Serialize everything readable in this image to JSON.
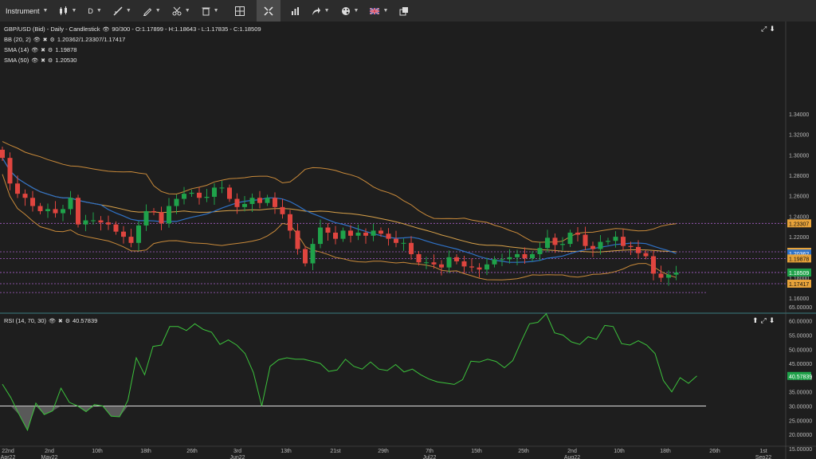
{
  "toolbar": {
    "instrument_label": "Instrument",
    "interval_label": "D",
    "items": [
      "candles-icon",
      "draw-line-icon",
      "pen-icon",
      "scissors-icon",
      "trash-icon",
      "crosshair-icon",
      "fit-icon",
      "bar-chart-icon",
      "share-icon",
      "palette-icon",
      "flag-uk-icon",
      "popout-icon"
    ]
  },
  "main_chart": {
    "title": "GBP/USD (Bid) - Daily - Candlestick",
    "ohlc": "90/300 - O:1.17899 - H:1.18643 - L:1.17835 - C:1.18509",
    "indicators": [
      {
        "label": "BB (20, 2)",
        "value": "1.20362/1.23307/1.17417"
      },
      {
        "label": "SMA (14)",
        "value": "1.19878"
      },
      {
        "label": "SMA (50)",
        "value": "1.20530"
      }
    ],
    "y_ticks": [
      "1.34000",
      "1.32000",
      "1.30000",
      "1.28000",
      "1.26000",
      "1.24000",
      "1.22000",
      "1.20000",
      "1.18000",
      "1.16000"
    ],
    "price_badges": [
      {
        "text": "1.23307",
        "value": 1.23307,
        "bg": "#e8a33a",
        "fg": "#111"
      },
      {
        "text": "1.20530",
        "value": 1.2053,
        "bg": "#e8a33a",
        "fg": "#111"
      },
      {
        "text": "1.20362",
        "value": 1.20362,
        "bg": "#2f72c7",
        "fg": "#fff"
      },
      {
        "text": "1.19878",
        "value": 1.19878,
        "bg": "#e8a33a",
        "fg": "#111"
      },
      {
        "text": "1.18509",
        "value": 1.18509,
        "bg": "#1fa24a",
        "fg": "#fff"
      },
      {
        "text": "1.17417",
        "value": 1.17417,
        "bg": "#e8a33a",
        "fg": "#111"
      }
    ]
  },
  "rsi_panel": {
    "title": "RSI (14, 70, 30)",
    "value": "40.57839",
    "badge": "40.57839",
    "y_ticks": [
      "65.00000",
      "60.00000",
      "55.00000",
      "50.00000",
      "45.00000",
      "40.00000",
      "35.00000",
      "30.00000",
      "25.00000",
      "20.00000",
      "15.00000"
    ]
  },
  "x_axis": [
    {
      "day": "22nd",
      "month": "Apr22"
    },
    {
      "day": "2nd",
      "month": "May22"
    },
    {
      "day": "10th",
      "month": ""
    },
    {
      "day": "18th",
      "month": ""
    },
    {
      "day": "26th",
      "month": ""
    },
    {
      "day": "3rd",
      "month": "Jun22"
    },
    {
      "day": "13th",
      "month": ""
    },
    {
      "day": "21st",
      "month": ""
    },
    {
      "day": "29th",
      "month": ""
    },
    {
      "day": "7th",
      "month": "Jul22"
    },
    {
      "day": "15th",
      "month": ""
    },
    {
      "day": "25th",
      "month": ""
    },
    {
      "day": "2nd",
      "month": "Aug22"
    },
    {
      "day": "10th",
      "month": ""
    },
    {
      "day": "18th",
      "month": ""
    },
    {
      "day": "26th",
      "month": ""
    },
    {
      "day": "1st",
      "month": "Sep22"
    }
  ],
  "colors": {
    "up": "#1fa24a",
    "down": "#e0453f",
    "sma50": "#d9a24a",
    "sma14": "#2f72c7",
    "bb": "#c98a3a",
    "rsi": "#3cc33c"
  },
  "chart_data": {
    "type": "candlestick",
    "title": "GBP/USD (Bid) - Daily - Candlestick",
    "closes": [
      1.297,
      1.272,
      1.262,
      1.258,
      1.25,
      1.245,
      1.247,
      1.243,
      1.247,
      1.258,
      1.232,
      1.236,
      1.236,
      1.234,
      1.232,
      1.225,
      1.22,
      1.214,
      1.231,
      1.245,
      1.244,
      1.233,
      1.25,
      1.257,
      1.262,
      1.263,
      1.258,
      1.259,
      1.268,
      1.268,
      1.257,
      1.249,
      1.252,
      1.258,
      1.253,
      1.258,
      1.249,
      1.242,
      1.226,
      1.208,
      1.194,
      1.213,
      1.229,
      1.224,
      1.218,
      1.226,
      1.221,
      1.224,
      1.221,
      1.226,
      1.223,
      1.218,
      1.214,
      1.214,
      1.203,
      1.195,
      1.195,
      1.193,
      1.19,
      1.2,
      1.196,
      1.191,
      1.19,
      1.188,
      1.193,
      1.198,
      1.198,
      1.2,
      1.203,
      1.199,
      1.203,
      1.209,
      1.219,
      1.212,
      1.213,
      1.224,
      1.222,
      1.211,
      1.208,
      1.215,
      1.216,
      1.22,
      1.211,
      1.21,
      1.204,
      1.201,
      1.184,
      1.18,
      1.183,
      1.185
    ],
    "rsi": [
      37.7,
      33,
      27,
      21.5,
      31,
      27,
      28.3,
      36.3,
      31.3,
      30,
      28,
      30.5,
      30,
      26.4,
      26.2,
      32,
      47,
      41,
      51,
      51.5,
      58,
      58,
      56.6,
      59,
      57,
      56,
      51.7,
      53.3,
      51.5,
      48.5,
      41.8,
      30,
      44,
      46.3,
      47,
      46.5,
      46.5,
      45.8,
      45,
      42.2,
      42.7,
      46.5,
      44,
      43,
      45.5,
      43,
      42.5,
      44.6,
      42,
      43,
      41,
      39.5,
      38.5,
      38.1,
      37.6,
      39.3,
      45.8,
      45.5,
      46.5,
      45.7,
      43.5,
      46,
      52.7,
      59,
      59.5,
      62.5,
      55.8,
      55,
      52.6,
      51.7,
      54.4,
      53.5,
      58.4,
      58,
      52,
      51.5,
      53,
      51.5,
      48.5,
      39,
      35,
      40,
      38,
      40.6
    ],
    "rsi_levels": [
      70,
      30
    ],
    "bb": {
      "mid": 1.20362,
      "upper": 1.23307,
      "lower": 1.17417
    },
    "sma14": 1.19878,
    "sma50": 1.2053
  }
}
